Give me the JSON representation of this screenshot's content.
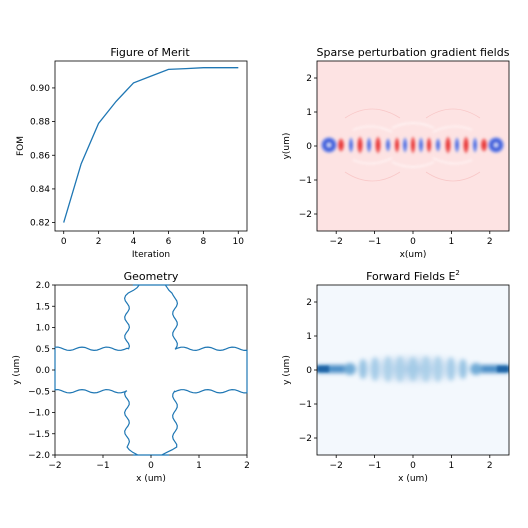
{
  "chart_data": [
    {
      "type": "line",
      "title": "Figure of Merit",
      "xlabel": "Iteration",
      "ylabel": "FOM",
      "xlim": [
        -0.5,
        10.5
      ],
      "ylim": [
        0.815,
        0.916
      ],
      "x": [
        0,
        1,
        2,
        3,
        4,
        5,
        6,
        7,
        8,
        9,
        10
      ],
      "y": [
        0.82,
        0.855,
        0.879,
        0.892,
        0.903,
        0.907,
        0.911,
        0.9115,
        0.912,
        0.912,
        0.912
      ],
      "xticks": [
        "0",
        "2",
        "4",
        "6",
        "8",
        "10"
      ],
      "yticks": [
        "0.82",
        "0.84",
        "0.86",
        "0.88",
        "0.90"
      ],
      "line_color": "#1f77b4"
    },
    {
      "type": "heatmap",
      "title": "Sparse perturbation gradient fields",
      "xlabel": "x(um)",
      "ylabel": "y(um)",
      "xlim": [
        -2.5,
        2.5
      ],
      "ylim": [
        -2.5,
        2.5
      ],
      "xticks": [
        "−2",
        "−1",
        "0",
        "1",
        "2"
      ],
      "yticks": [
        "−2",
        "−1",
        "0",
        "1",
        "2"
      ],
      "colormap": "bwr",
      "background": "#fde3e3"
    },
    {
      "type": "line",
      "title": "Geometry",
      "xlabel": "x (um)",
      "ylabel": "y (um)",
      "xlim": [
        -2,
        2
      ],
      "ylim": [
        -2,
        2
      ],
      "xticks": [
        "−2",
        "−1",
        "0",
        "1",
        "2"
      ],
      "yticks": [
        "−2.0",
        "−1.5",
        "−1.0",
        "−0.5",
        "0.0",
        "0.5",
        "1.0",
        "1.5",
        "2.0"
      ],
      "shape": "cross",
      "arm_half_width": [
        0.5,
        0.55
      ],
      "line_color": "#1f77b4"
    },
    {
      "type": "heatmap",
      "title": "Forward Fields E",
      "title_superscript": "2",
      "xlabel": "x (um)",
      "ylabel": "y (um)",
      "xlim": [
        -2.5,
        2.5
      ],
      "ylim": [
        -2.5,
        2.5
      ],
      "xticks": [
        "−2",
        "−1",
        "0",
        "1",
        "2"
      ],
      "yticks": [
        "−2",
        "−1",
        "0",
        "1",
        "2"
      ],
      "colormap": "Blues",
      "background": "#f3f8fd"
    }
  ]
}
